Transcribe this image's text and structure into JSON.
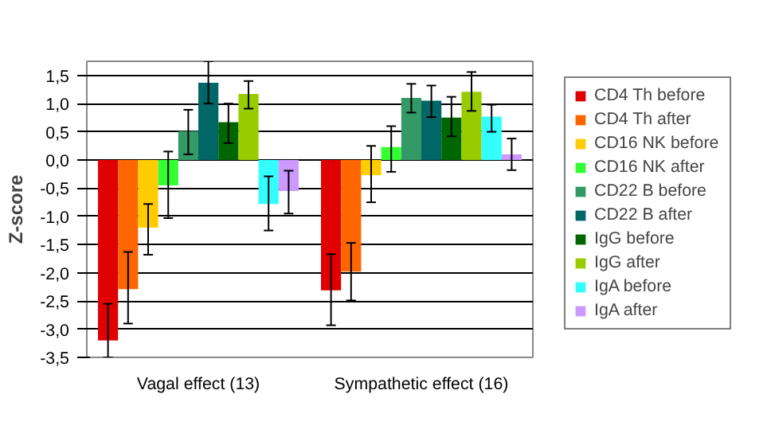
{
  "chart_data": {
    "type": "bar",
    "ylabel": "Z-score",
    "categories": [
      "Vagal effect (13)",
      "Sympathetic effect (16)"
    ],
    "ylim": [
      -3.5,
      1.75
    ],
    "yticks": [
      {
        "value": -3.5,
        "label": "-3,5"
      },
      {
        "value": -3.0,
        "label": "-3,0"
      },
      {
        "value": -2.5,
        "label": "-2,5"
      },
      {
        "value": -2.0,
        "label": "-2,0"
      },
      {
        "value": -1.5,
        "label": "-1,5"
      },
      {
        "value": -1.0,
        "label": "-1,0"
      },
      {
        "value": -0.5,
        "label": "-0,5"
      },
      {
        "value": 0,
        "label": "0,0"
      },
      {
        "value": 0.5,
        "label": "0,5"
      },
      {
        "value": 1.0,
        "label": "1,0"
      },
      {
        "value": 1.5,
        "label": "1,5"
      }
    ],
    "grid": "y",
    "legend": "right",
    "series": [
      {
        "name": "CD4 Th before",
        "color": "#e00000",
        "values": [
          -3.2,
          -2.31
        ],
        "errors": [
          [
            -3.5,
            -2.55
          ],
          [
            -2.93,
            -1.67
          ]
        ]
      },
      {
        "name": "CD4 Th after",
        "color": "#ff6600",
        "values": [
          -2.29,
          -1.98
        ],
        "errors": [
          [
            -2.9,
            -1.63
          ],
          [
            -2.49,
            -1.47
          ]
        ]
      },
      {
        "name": "CD16 NK before",
        "color": "#ffcc00",
        "values": [
          -1.2,
          -0.27
        ],
        "errors": [
          [
            -1.68,
            -0.78
          ],
          [
            -0.75,
            0.25
          ]
        ]
      },
      {
        "name": "CD16 NK after",
        "color": "#33ff33",
        "values": [
          -0.45,
          0.23
        ],
        "errors": [
          [
            -1.03,
            0.15
          ],
          [
            -0.21,
            0.6
          ]
        ]
      },
      {
        "name": "CD22 B before",
        "color": "#339966",
        "values": [
          0.51,
          1.1
        ],
        "errors": [
          [
            0.1,
            0.89
          ],
          [
            0.84,
            1.35
          ]
        ]
      },
      {
        "name": "CD22 B after",
        "color": "#006666",
        "values": [
          1.37,
          1.05
        ],
        "errors": [
          [
            1.0,
            1.75
          ],
          [
            0.76,
            1.32
          ]
        ]
      },
      {
        "name": "IgG before",
        "color": "#006600",
        "values": [
          0.67,
          0.75
        ],
        "errors": [
          [
            0.3,
            1.0
          ],
          [
            0.42,
            1.12
          ]
        ]
      },
      {
        "name": "IgG after",
        "color": "#99cc00",
        "values": [
          1.17,
          1.21
        ],
        "errors": [
          [
            0.91,
            1.4
          ],
          [
            0.87,
            1.56
          ]
        ]
      },
      {
        "name": "IgA before",
        "color": "#33ffff",
        "values": [
          -0.78,
          0.77
        ],
        "errors": [
          [
            -1.25,
            -0.29
          ],
          [
            0.5,
            0.98
          ]
        ]
      },
      {
        "name": "IgA after",
        "color": "#cc99ff",
        "values": [
          -0.55,
          0.1
        ],
        "errors": [
          [
            -0.95,
            -0.19
          ],
          [
            -0.18,
            0.38
          ]
        ]
      }
    ]
  }
}
